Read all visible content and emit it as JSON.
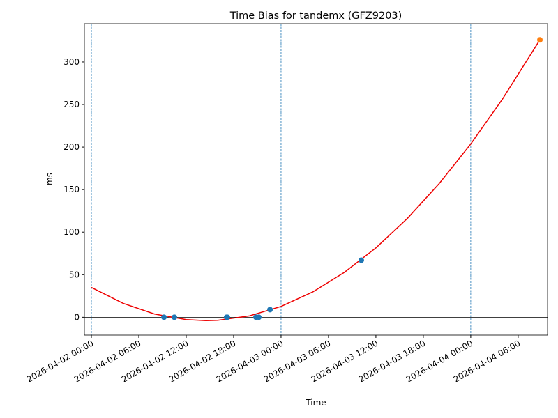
{
  "chart_data": {
    "type": "line",
    "title": "Time Bias for tandemx (GFZ9203)",
    "x_label": "Time",
    "y_label": "ms",
    "xlim": [
      "2026-04-01 23:07",
      "2026-04-04 09:43"
    ],
    "ylim": [
      -21,
      345
    ],
    "xticks": [
      "2026-04-02 00:00",
      "2026-04-02 06:00",
      "2026-04-02 12:00",
      "2026-04-02 18:00",
      "2026-04-03 00:00",
      "2026-04-03 06:00",
      "2026-04-03 12:00",
      "2026-04-03 18:00",
      "2026-04-04 00:00",
      "2026-04-04 06:00"
    ],
    "yticks": [
      0,
      50,
      100,
      150,
      200,
      250,
      300
    ],
    "grid": false,
    "vlines": [
      "2026-04-02 00:00",
      "2026-04-03 00:00",
      "2026-04-04 00:00"
    ],
    "vline_color": "#1f77b4",
    "hline": 0,
    "series": [
      {
        "type": "line",
        "color": "#ee0000",
        "x": [
          "2026-04-02 00:00",
          "2026-04-02 04:00",
          "2026-04-02 08:00",
          "2026-04-02 12:00",
          "2026-04-02 14:30",
          "2026-04-02 16:00",
          "2026-04-02 20:00",
          "2026-04-03 00:00",
          "2026-04-03 04:00",
          "2026-04-03 08:00",
          "2026-04-03 12:00",
          "2026-04-03 16:00",
          "2026-04-03 20:00",
          "2026-04-04 00:00",
          "2026-04-04 04:00",
          "2026-04-04 08:45"
        ],
        "values": [
          35,
          16.4,
          3.8,
          -2.8,
          -4,
          -3.6,
          1.6,
          12.7,
          29.7,
          52.7,
          81.5,
          116.3,
          157,
          203.6,
          256.2,
          326
        ]
      },
      {
        "type": "scatter",
        "color": "#1f77b4",
        "x": [
          "2026-04-02 09:11",
          "2026-04-02 10:30",
          "2026-04-02 17:07",
          "2026-04-02 17:12",
          "2026-04-02 20:50",
          "2026-04-02 21:11",
          "2026-04-02 22:36",
          "2026-04-03 10:09"
        ],
        "values": [
          0,
          0,
          0,
          0,
          0,
          0,
          9,
          67
        ]
      },
      {
        "type": "scatter",
        "color": "#ff7f0e",
        "x": [
          "2026-04-04 08:45"
        ],
        "values": [
          326
        ]
      }
    ]
  }
}
